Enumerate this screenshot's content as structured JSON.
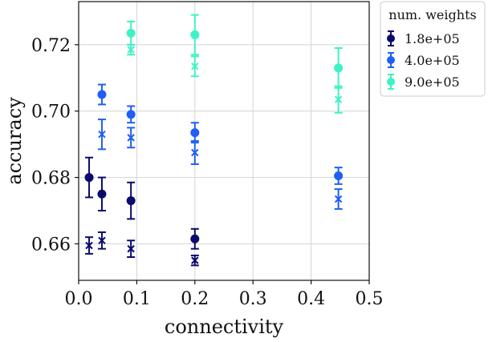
{
  "chart_data": {
    "type": "scatter",
    "xlabel": "connectivity",
    "ylabel": "accuracy",
    "xlim": [
      0.0,
      0.5
    ],
    "ylim": [
      0.649,
      0.733
    ],
    "xticks": [
      0.0,
      0.1,
      0.2,
      0.3,
      0.4,
      0.5
    ],
    "xtick_labels": [
      "0.0",
      "0.1",
      "0.2",
      "0.3",
      "0.4",
      "0.5"
    ],
    "yticks": [
      0.66,
      0.68,
      0.7,
      0.72
    ],
    "ytick_labels": [
      "0.66",
      "0.68",
      "0.70",
      "0.72"
    ],
    "grid": true,
    "legend": {
      "title": "num. weights",
      "placement": "outside-top-right",
      "entries": [
        "1.8e+05",
        "4.0e+05",
        "9.0e+05"
      ]
    },
    "series": [
      {
        "name": "1.8e+05",
        "color": "#0a0a6e",
        "points": [
          {
            "x": 0.018,
            "y": 0.68,
            "err": 0.006,
            "marker": "circle"
          },
          {
            "x": 0.04,
            "y": 0.675,
            "err": 0.005,
            "marker": "circle"
          },
          {
            "x": 0.09,
            "y": 0.673,
            "err": 0.0055,
            "marker": "circle"
          },
          {
            "x": 0.2,
            "y": 0.6615,
            "err": 0.003,
            "marker": "circle"
          },
          {
            "x": 0.018,
            "y": 0.6595,
            "err": 0.0025,
            "marker": "x"
          },
          {
            "x": 0.04,
            "y": 0.661,
            "err": 0.0025,
            "marker": "x"
          },
          {
            "x": 0.09,
            "y": 0.6585,
            "err": 0.0025,
            "marker": "x"
          },
          {
            "x": 0.2,
            "y": 0.655,
            "err": 0.0015,
            "marker": "x"
          }
        ]
      },
      {
        "name": "4.0e+05",
        "color": "#1f5ff5",
        "points": [
          {
            "x": 0.04,
            "y": 0.705,
            "err": 0.003,
            "marker": "circle"
          },
          {
            "x": 0.09,
            "y": 0.699,
            "err": 0.0025,
            "marker": "circle"
          },
          {
            "x": 0.2,
            "y": 0.6935,
            "err": 0.003,
            "marker": "circle"
          },
          {
            "x": 0.447,
            "y": 0.6805,
            "err": 0.0025,
            "marker": "circle"
          },
          {
            "x": 0.04,
            "y": 0.693,
            "err": 0.0045,
            "marker": "x"
          },
          {
            "x": 0.09,
            "y": 0.692,
            "err": 0.003,
            "marker": "x"
          },
          {
            "x": 0.2,
            "y": 0.6875,
            "err": 0.0035,
            "marker": "x"
          },
          {
            "x": 0.447,
            "y": 0.6735,
            "err": 0.003,
            "marker": "x"
          }
        ]
      },
      {
        "name": "9.0e+05",
        "color": "#3ef2c6",
        "points": [
          {
            "x": 0.09,
            "y": 0.7235,
            "err": 0.0035,
            "marker": "circle"
          },
          {
            "x": 0.2,
            "y": 0.723,
            "err": 0.006,
            "marker": "circle"
          },
          {
            "x": 0.447,
            "y": 0.713,
            "err": 0.006,
            "marker": "circle"
          },
          {
            "x": 0.09,
            "y": 0.7185,
            "err": 0.0015,
            "marker": "x"
          },
          {
            "x": 0.2,
            "y": 0.7135,
            "err": 0.003,
            "marker": "x"
          },
          {
            "x": 0.447,
            "y": 0.7035,
            "err": 0.004,
            "marker": "x"
          }
        ]
      }
    ]
  }
}
